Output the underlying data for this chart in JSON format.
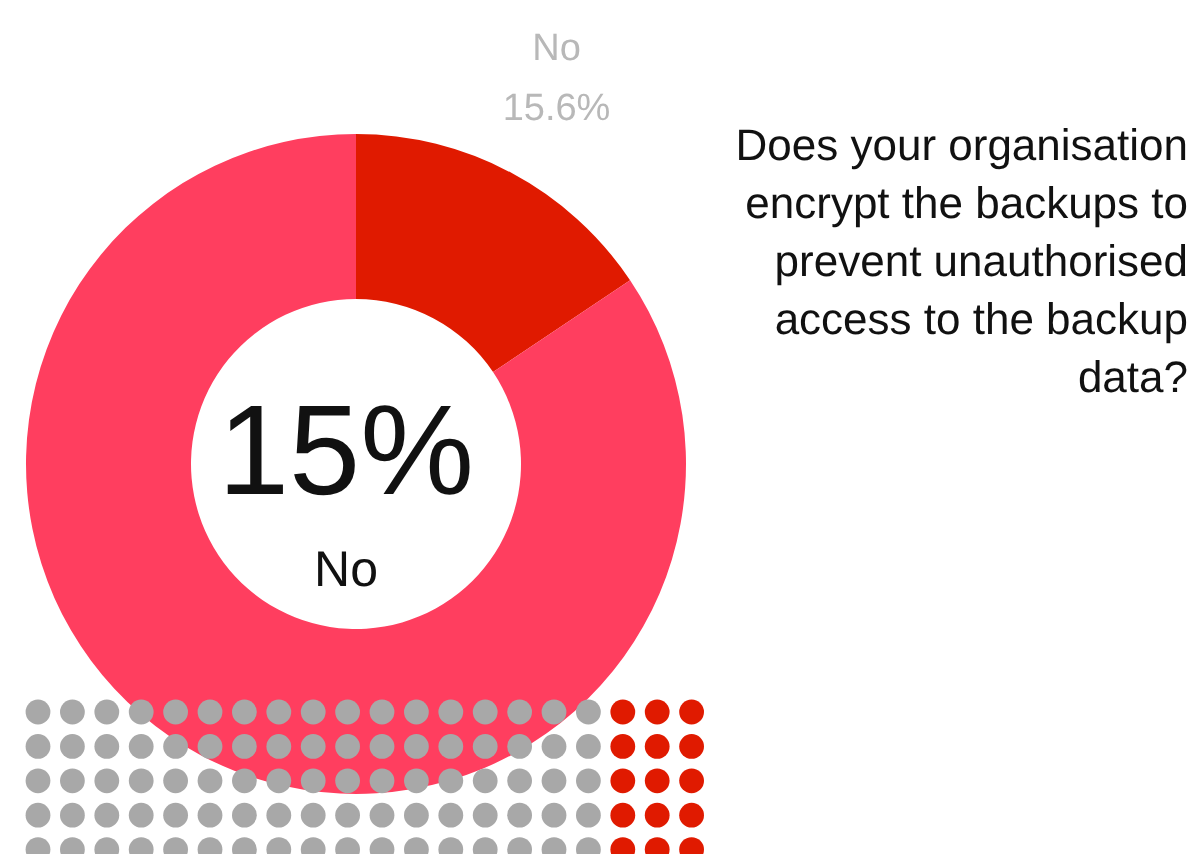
{
  "chart_data": {
    "type": "donut",
    "title": "Does your organisation encrypt the backups to prevent unauthorised access to the backup data?",
    "categories": [
      "No",
      null
    ],
    "values": [
      15.6,
      84.4
    ],
    "colors": [
      "#e01a00",
      "#ff3e5f"
    ],
    "value_labels": [
      "15.6%",
      null
    ],
    "annotations": [
      "15%",
      "No"
    ]
  }
}
